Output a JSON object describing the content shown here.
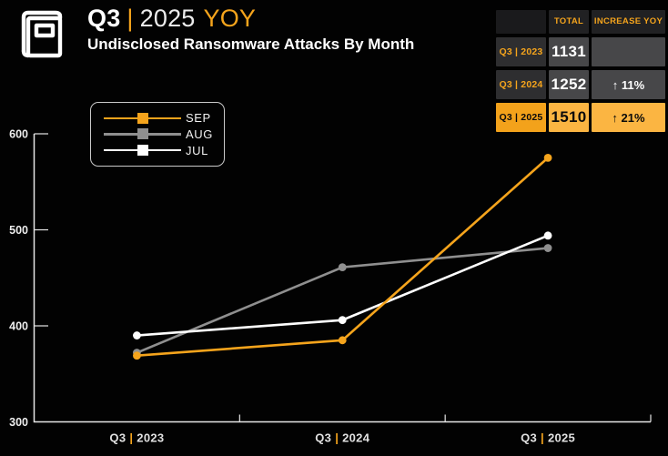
{
  "header": {
    "title_q": "Q3",
    "title_sep": "|",
    "title_year": "2025",
    "title_yoy": "YOY",
    "subtitle": "Undisclosed Ransomware Attacks By Month"
  },
  "colors": {
    "background": "#000000",
    "accent_orange": "#F5A41C",
    "table_label_bg": "#2E2E30",
    "table_value_bg": "#474749",
    "table_header_bg": "#212123",
    "highlight_label_bg": "#F3A21B",
    "highlight_value_bg": "#FBB542",
    "axis": "#E6E6E6",
    "series_sep": "#F5A41C",
    "series_aug": "#8F8F8F",
    "series_jul": "#FFFFFF"
  },
  "table": {
    "headers": [
      "",
      "TOTAL",
      "INCREASE YOY"
    ],
    "rows": [
      {
        "label": "Q3 | 2023",
        "total": "1131",
        "increase": "",
        "highlight": false
      },
      {
        "label": "Q3 | 2024",
        "total": "1252",
        "increase": "↑ 11%",
        "highlight": false
      },
      {
        "label": "Q3 | 2025",
        "total": "1510",
        "increase": "↑ 21%",
        "highlight": true
      }
    ]
  },
  "chart_data": {
    "type": "line",
    "title": "Q3 | 2025 YOY — Undisclosed Ransomware Attacks By Month",
    "categories": [
      "Q3 | 2023",
      "Q3 | 2024",
      "Q3 | 2025"
    ],
    "series": [
      {
        "name": "SEP",
        "color": "#F5A41C",
        "values": [
          369,
          385,
          575
        ]
      },
      {
        "name": "AUG",
        "color": "#8F8F8F",
        "values": [
          372,
          461,
          481
        ]
      },
      {
        "name": "JUL",
        "color": "#FFFFFF",
        "values": [
          390,
          406,
          494
        ]
      }
    ],
    "ylim": [
      300,
      600
    ],
    "yticks": [
      300,
      400,
      500,
      600
    ],
    "grid": false,
    "legend_position": "top-left",
    "marker": "circle"
  }
}
